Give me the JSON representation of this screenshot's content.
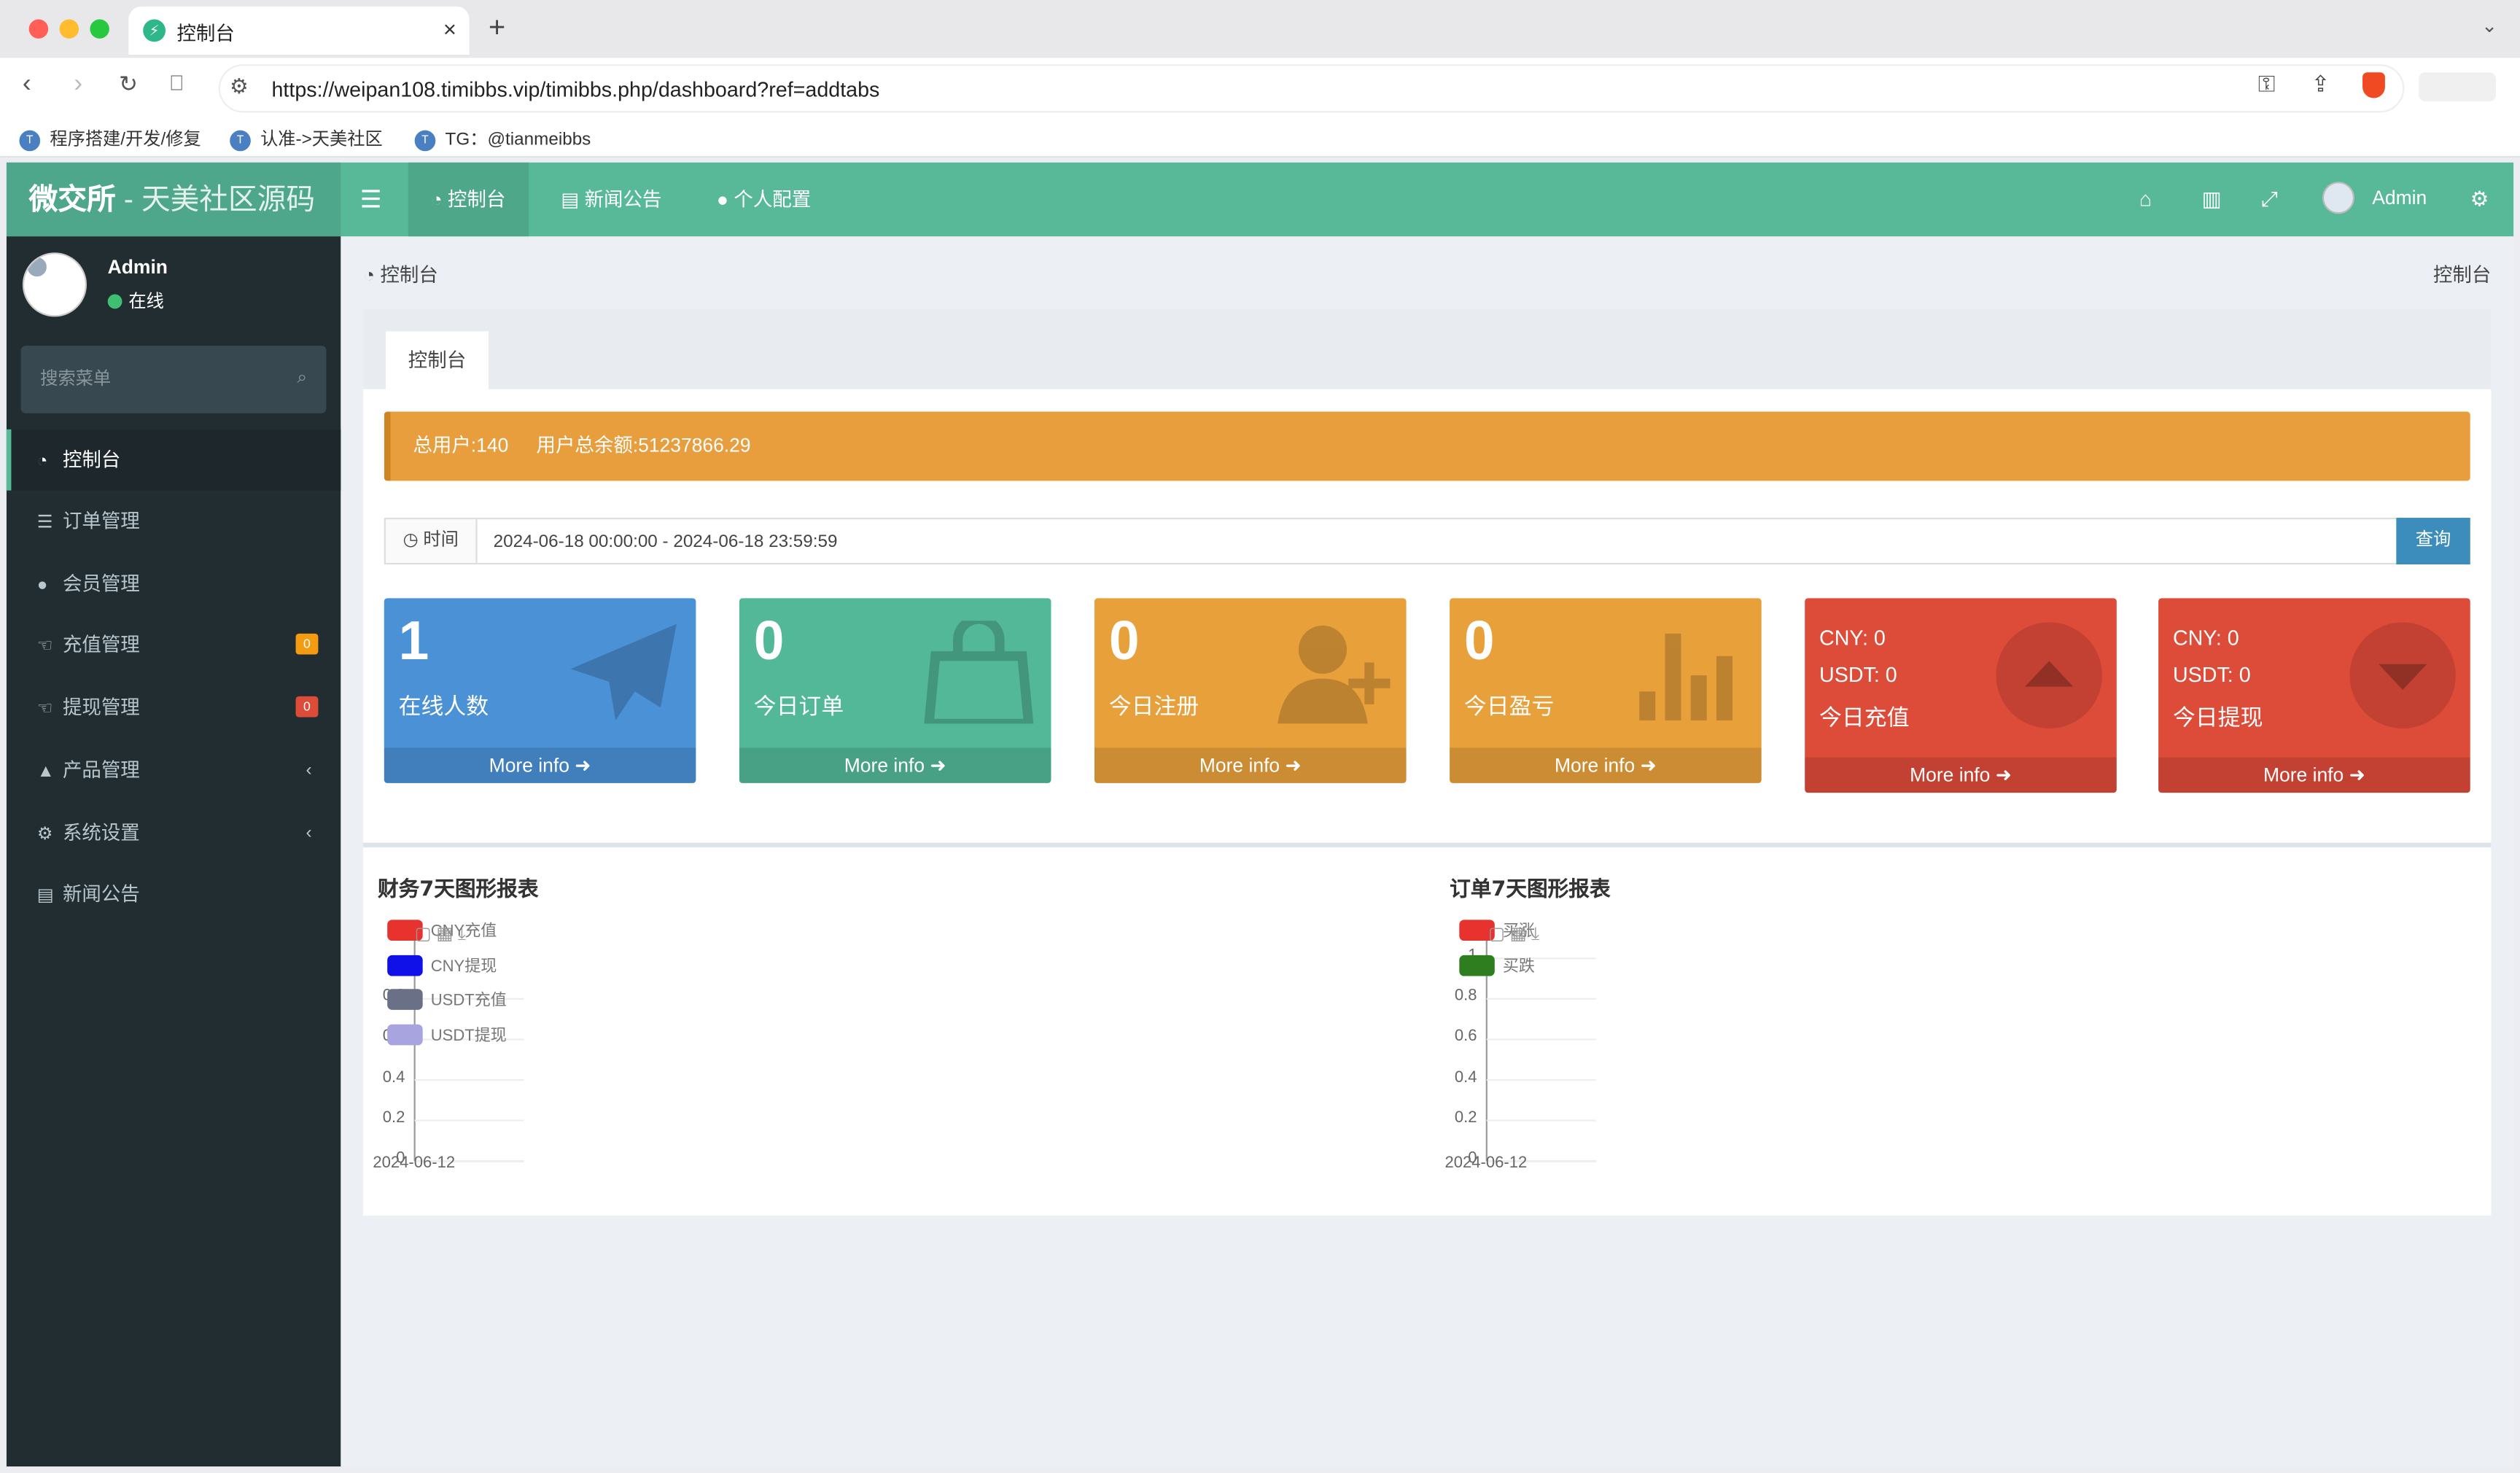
{
  "browser": {
    "tab_title": "控制台",
    "url": "https://weipan108.timibbs.vip/timibbs.php/dashboard?ref=addtabs",
    "bookmarks": [
      "程序搭建/开发/修复",
      "认准->天美社区",
      "TG：@tianmeibbs"
    ],
    "colors": {
      "close": "#ff5f57",
      "minimize": "#febc2e",
      "maximize": "#28c840"
    }
  },
  "header": {
    "logo_main": "微交所",
    "logo_sub": " - 天美社区源码",
    "nav": [
      {
        "label": "控制台",
        "icon": "dashboard-icon"
      },
      {
        "label": "新闻公告",
        "icon": "newspaper-icon"
      },
      {
        "label": "个人配置",
        "icon": "user-icon"
      }
    ],
    "user": "Admin",
    "icons": [
      "home-icon",
      "trash-icon",
      "fullscreen-icon",
      "gears-icon"
    ],
    "color": "#58b999"
  },
  "sidebar": {
    "user_name": "Admin",
    "status": "在线",
    "search_placeholder": "搜索菜单",
    "items": [
      {
        "label": "控制台",
        "icon": "dashboard-icon",
        "active": true
      },
      {
        "label": "订单管理",
        "icon": "list-icon"
      },
      {
        "label": "会员管理",
        "icon": "users-icon"
      },
      {
        "label": "充值管理",
        "icon": "hand-icon",
        "badge": "0",
        "badge_color": "#f39c12"
      },
      {
        "label": "提现管理",
        "icon": "hand-icon",
        "badge": "0",
        "badge_color": "#dd4b39"
      },
      {
        "label": "产品管理",
        "icon": "bank-icon",
        "chevron": "‹"
      },
      {
        "label": "系统设置",
        "icon": "gears-icon",
        "chevron": "‹"
      },
      {
        "label": "新闻公告",
        "icon": "newspaper-icon"
      }
    ]
  },
  "breadcrumb": {
    "left": "控制台",
    "right": "控制台"
  },
  "panel_tab": "控制台",
  "alert": {
    "total_users": "总用户:140",
    "total_balance": "用户总余额:51237866.29"
  },
  "time_filter": {
    "label": "时间",
    "value": "2024-06-18 00:00:00 - 2024-06-18 23:59:59",
    "button": "查询"
  },
  "stats": [
    {
      "value": "1",
      "label": "在线人数",
      "more": "More info",
      "color": "#4b91d6",
      "icon": "paper-plane-icon"
    },
    {
      "value": "0",
      "label": "今日订单",
      "more": "More info",
      "color": "#52b898",
      "icon": "shopping-bag-icon"
    },
    {
      "value": "0",
      "label": "今日注册",
      "more": "More info",
      "color": "#e8a03b",
      "icon": "user-plus-icon"
    },
    {
      "value": "0",
      "label": "今日盈亏",
      "more": "More info",
      "color": "#e8a03b",
      "icon": "bar-chart-icon"
    },
    {
      "cny": "CNY:  0",
      "usdt": "USDT:  0",
      "label": "今日充值",
      "more": "More info",
      "color": "#dd4b39",
      "icon": "arrow-up-circle-icon"
    },
    {
      "cny": "CNY:  0",
      "usdt": "USDT:  0",
      "label": "今日提现",
      "more": "More info",
      "color": "#dd4b39",
      "icon": "arrow-down-circle-icon"
    }
  ],
  "chart_data": [
    {
      "type": "line",
      "title": "财务7天图形报表",
      "x": [
        "2024-06-12"
      ],
      "ylim": [
        0,
        1
      ],
      "yticks": [
        "0",
        "0.2",
        "0.4",
        "0.6",
        "0.8"
      ],
      "series": [
        {
          "name": "CNY充值",
          "color": "#e8322e"
        },
        {
          "name": "CNY提现",
          "color": "#1010e8"
        },
        {
          "name": "USDT充值",
          "color": "#6a7086"
        },
        {
          "name": "USDT提现",
          "color": "#a7a4e0"
        }
      ],
      "legend": "top-left"
    },
    {
      "type": "line",
      "title": "订单7天图形报表",
      "x": [
        "2024-06-12"
      ],
      "ylim": [
        0,
        1
      ],
      "yticks": [
        "0",
        "0.2",
        "0.4",
        "0.6",
        "0.8",
        "1"
      ],
      "series": [
        {
          "name": "买涨",
          "color": "#e8322e"
        },
        {
          "name": "买跌",
          "color": "#2e7d1e"
        }
      ],
      "legend": "top-left"
    }
  ]
}
